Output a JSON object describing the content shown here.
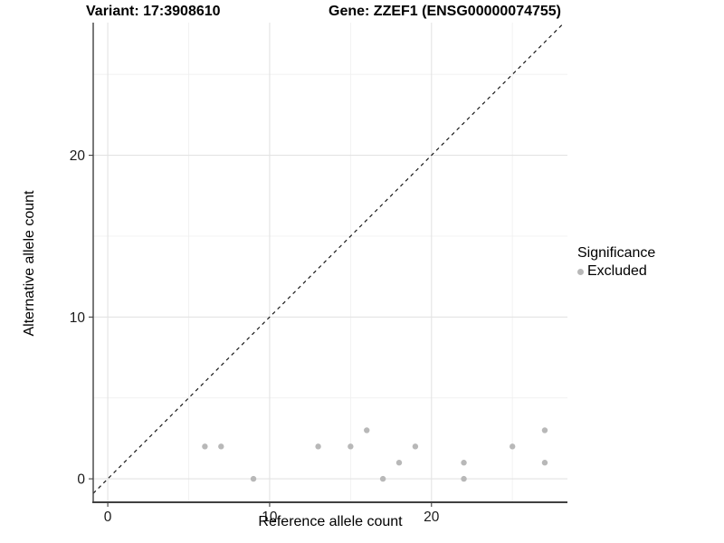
{
  "header": {
    "title_left": "Variant: 17:3908610",
    "title_right": "Gene: ZZEF1 (ENSG00000074755)"
  },
  "chart_data": {
    "type": "scatter",
    "xlabel": "Reference allele count",
    "ylabel": "Alternative allele count",
    "xlim": [
      -0.9,
      28.4
    ],
    "ylim": [
      -1.45,
      28.2
    ],
    "x_major_ticks": [
      0,
      10,
      20
    ],
    "x_minor_ticks": [
      5,
      15,
      25
    ],
    "y_major_ticks": [
      0,
      10,
      20
    ],
    "y_minor_ticks": [
      5,
      15,
      25
    ],
    "grid": true,
    "identity_line": {
      "slope": 1,
      "intercept": 0,
      "style": "dashed",
      "color": "#1a1a1a"
    },
    "series": [
      {
        "name": "Excluded",
        "color": "#b8b8b8",
        "points": [
          [
            6,
            2
          ],
          [
            7,
            2
          ],
          [
            9,
            0
          ],
          [
            13,
            2
          ],
          [
            15,
            2
          ],
          [
            16,
            3
          ],
          [
            17,
            0
          ],
          [
            18,
            1
          ],
          [
            19,
            2
          ],
          [
            22,
            0
          ],
          [
            22,
            1
          ],
          [
            25,
            2
          ],
          [
            27,
            1
          ],
          [
            27,
            3
          ]
        ]
      }
    ],
    "legend": {
      "title": "Significance",
      "position": "right",
      "items": [
        {
          "label": "Excluded",
          "color": "#b8b8b8"
        }
      ]
    }
  },
  "colors": {
    "background": "#ffffff",
    "grid_major": "#e3e3e3",
    "grid_minor": "#f0f0f0",
    "axis_line": "#404040",
    "tick_text": "#1a1a1a",
    "point": "#b8b8b8"
  }
}
